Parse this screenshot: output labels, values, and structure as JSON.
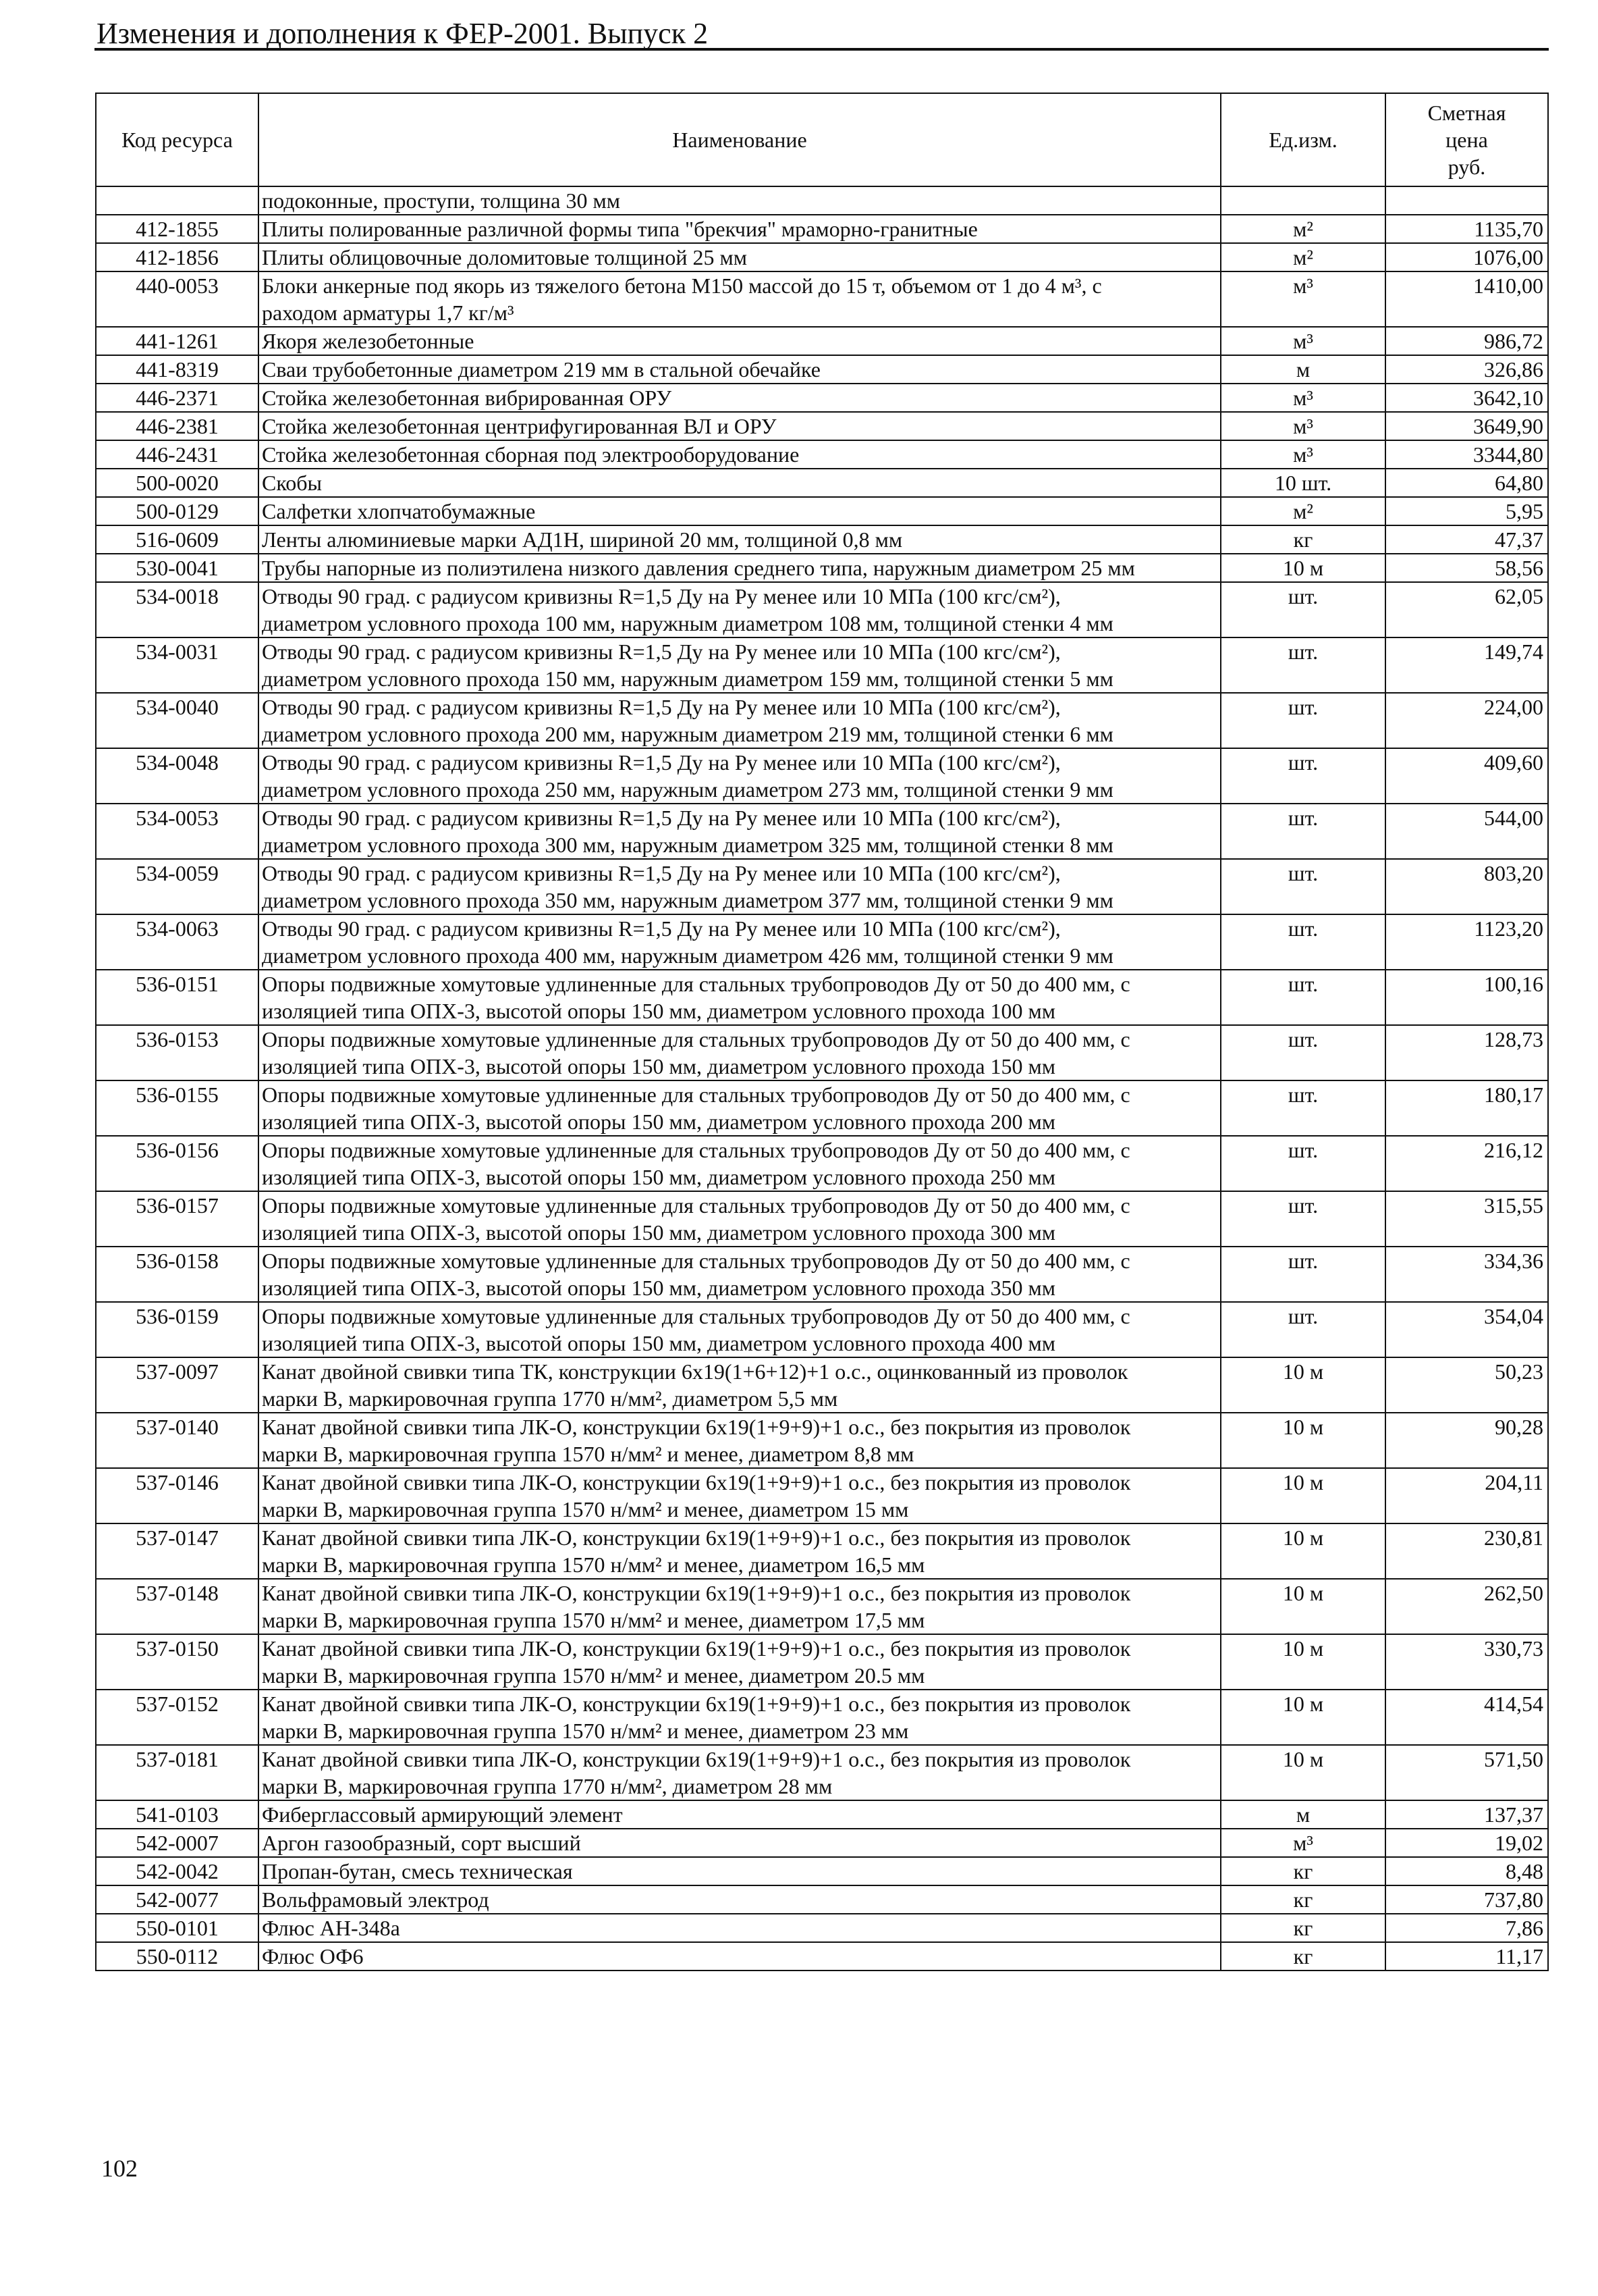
{
  "header": {
    "title": "Изменения и дополнения к ФЕР-2001. Выпуск 2"
  },
  "table": {
    "columns": [
      "Код ресурса",
      "Наименование",
      "Ед.изм.",
      "Сметная\nцена\nруб."
    ],
    "rows": [
      {
        "code": "",
        "name": "подоконные, проступи, толщина 30 мм",
        "unit": "",
        "price": ""
      },
      {
        "code": "412-1855",
        "name": "Плиты полированные различной формы типа \"брекчия\" мраморно-гранитные",
        "unit": "м²",
        "price": "1135,70"
      },
      {
        "code": "412-1856",
        "name": "Плиты облицовочные доломитовые толщиной 25 мм",
        "unit": "м²",
        "price": "1076,00"
      },
      {
        "code": "440-0053",
        "name": "Блоки анкерные под якорь из тяжелого бетона М150 массой до 15 т, объемом от 1 до 4 м³, с\nраходом арматуры 1,7 кг/м³",
        "unit": "м³",
        "price": "1410,00"
      },
      {
        "code": "441-1261",
        "name": "Якоря железобетонные",
        "unit": "м³",
        "price": "986,72"
      },
      {
        "code": "441-8319",
        "name": "Сваи трубобетонные диаметром 219 мм в стальной обечайке",
        "unit": "м",
        "price": "326,86"
      },
      {
        "code": "446-2371",
        "name": "Стойка железобетонная вибрированная ОРУ",
        "unit": "м³",
        "price": "3642,10"
      },
      {
        "code": "446-2381",
        "name": "Стойка железобетонная центрифугированная ВЛ и ОРУ",
        "unit": "м³",
        "price": "3649,90"
      },
      {
        "code": "446-2431",
        "name": "Стойка железобетонная сборная под электрооборудование",
        "unit": "м³",
        "price": "3344,80"
      },
      {
        "code": "500-0020",
        "name": "Скобы",
        "unit": "10 шт.",
        "price": "64,80"
      },
      {
        "code": "500-0129",
        "name": "Салфетки хлопчатобумажные",
        "unit": "м²",
        "price": "5,95"
      },
      {
        "code": "516-0609",
        "name": "Ленты алюминиевые марки АД1Н, шириной 20 мм, толщиной 0,8 мм",
        "unit": "кг",
        "price": "47,37"
      },
      {
        "code": "530-0041",
        "name": "Трубы напорные из полиэтилена низкого давления среднего типа, наружным диаметром 25 мм",
        "unit": "10 м",
        "price": "58,56"
      },
      {
        "code": "534-0018",
        "name": "Отводы 90 град. с радиусом кривизны R=1,5 Ду на Ру менее или 10 МПа (100 кгс/см²),\nдиаметром условного прохода 100 мм, наружным диаметром 108 мм, толщиной стенки 4 мм",
        "unit": "шт.",
        "price": "62,05"
      },
      {
        "code": "534-0031",
        "name": "Отводы 90 град. с радиусом кривизны R=1,5 Ду на Ру менее или 10 МПа (100 кгс/см²),\nдиаметром условного прохода 150 мм, наружным диаметром 159 мм, толщиной стенки 5 мм",
        "unit": "шт.",
        "price": "149,74"
      },
      {
        "code": "534-0040",
        "name": "Отводы 90 град. с радиусом кривизны R=1,5 Ду на Ру менее или 10 МПа (100 кгс/см²),\nдиаметром условного прохода 200 мм, наружным диаметром 219 мм, толщиной стенки 6 мм",
        "unit": "шт.",
        "price": "224,00"
      },
      {
        "code": "534-0048",
        "name": "Отводы 90 град. с радиусом кривизны R=1,5 Ду на Ру менее или 10 МПа (100 кгс/см²),\nдиаметром условного прохода 250 мм, наружным диаметром 273 мм, толщиной стенки 9 мм",
        "unit": "шт.",
        "price": "409,60"
      },
      {
        "code": "534-0053",
        "name": "Отводы 90 град. с радиусом кривизны R=1,5 Ду на Ру менее или 10 МПа (100 кгс/см²),\nдиаметром условного прохода 300 мм, наружным диаметром 325 мм, толщиной стенки 8 мм",
        "unit": "шт.",
        "price": "544,00"
      },
      {
        "code": "534-0059",
        "name": "Отводы 90 град. с радиусом кривизны R=1,5 Ду на Ру менее или 10 МПа (100 кгс/см²),\nдиаметром условного прохода 350 мм, наружным диаметром 377 мм, толщиной стенки 9 мм",
        "unit": "шт.",
        "price": "803,20"
      },
      {
        "code": "534-0063",
        "name": "Отводы 90 град. с радиусом кривизны R=1,5 Ду на Ру менее или 10 МПа (100 кгс/см²),\nдиаметром условного прохода 400 мм, наружным диаметром 426 мм, толщиной стенки 9 мм",
        "unit": "шт.",
        "price": "1123,20"
      },
      {
        "code": "536-0151",
        "name": "Опоры подвижные хомутовые удлиненные для стальных трубопроводов Ду от 50 до 400 мм, с\nизоляцией типа ОПХ-3, высотой опоры 150 мм, диаметром условного прохода 100 мм",
        "unit": "шт.",
        "price": "100,16"
      },
      {
        "code": "536-0153",
        "name": "Опоры подвижные хомутовые удлиненные для стальных трубопроводов Ду от 50 до 400 мм, с\nизоляцией типа ОПХ-3, высотой опоры 150 мм, диаметром условного прохода 150 мм",
        "unit": "шт.",
        "price": "128,73"
      },
      {
        "code": "536-0155",
        "name": "Опоры подвижные хомутовые удлиненные для стальных трубопроводов Ду от 50 до 400 мм, с\nизоляцией типа ОПХ-3, высотой опоры 150 мм, диаметром условного прохода 200 мм",
        "unit": "шт.",
        "price": "180,17"
      },
      {
        "code": "536-0156",
        "name": "Опоры подвижные хомутовые удлиненные для стальных трубопроводов Ду от 50 до 400 мм, с\nизоляцией типа ОПХ-3, высотой опоры 150 мм, диаметром условного прохода 250 мм",
        "unit": "шт.",
        "price": "216,12"
      },
      {
        "code": "536-0157",
        "name": "Опоры подвижные хомутовые удлиненные для стальных трубопроводов Ду от 50 до 400 мм, с\nизоляцией типа ОПХ-3, высотой опоры 150 мм, диаметром условного прохода 300 мм",
        "unit": "шт.",
        "price": "315,55"
      },
      {
        "code": "536-0158",
        "name": "Опоры подвижные хомутовые удлиненные для стальных трубопроводов Ду от 50 до 400 мм, с\nизоляцией типа ОПХ-3, высотой опоры 150 мм, диаметром условного прохода 350 мм",
        "unit": "шт.",
        "price": "334,36"
      },
      {
        "code": "536-0159",
        "name": "Опоры подвижные хомутовые удлиненные для стальных трубопроводов Ду от 50 до 400 мм, с\nизоляцией типа ОПХ-3, высотой опоры 150 мм, диаметром условного прохода 400 мм",
        "unit": "шт.",
        "price": "354,04"
      },
      {
        "code": "537-0097",
        "name": "Канат двойной свивки типа ТК, конструкции 6х19(1+6+12)+1 о.с., оцинкованный из проволок\nмарки В, маркировочная группа 1770 н/мм², диаметром 5,5 мм",
        "unit": "10 м",
        "price": "50,23"
      },
      {
        "code": "537-0140",
        "name": "Канат двойной свивки типа ЛК-О, конструкции 6х19(1+9+9)+1 о.с., без покрытия из проволок\nмарки В, маркировочная группа 1570 н/мм² и менее, диаметром 8,8 мм",
        "unit": "10 м",
        "price": "90,28"
      },
      {
        "code": "537-0146",
        "name": "Канат двойной свивки типа ЛК-О, конструкции 6х19(1+9+9)+1 о.с., без покрытия из проволок\nмарки В, маркировочная группа 1570 н/мм² и менее, диаметром 15 мм",
        "unit": "10 м",
        "price": "204,11"
      },
      {
        "code": "537-0147",
        "name": "Канат двойной свивки типа ЛК-О, конструкции 6х19(1+9+9)+1 о.с., без покрытия из проволок\nмарки В, маркировочная группа 1570 н/мм² и менее, диаметром 16,5 мм",
        "unit": "10 м",
        "price": "230,81"
      },
      {
        "code": "537-0148",
        "name": "Канат двойной свивки типа ЛК-О, конструкции 6х19(1+9+9)+1 о.с., без покрытия из проволок\nмарки В, маркировочная группа 1570 н/мм² и менее, диаметром 17,5 мм",
        "unit": "10 м",
        "price": "262,50"
      },
      {
        "code": "537-0150",
        "name": "Канат двойной свивки типа ЛК-О, конструкции 6х19(1+9+9)+1 о.с., без покрытия из проволок\nмарки В, маркировочная группа 1570 н/мм² и менее, диаметром 20.5 мм",
        "unit": "10 м",
        "price": "330,73"
      },
      {
        "code": "537-0152",
        "name": "Канат двойной свивки типа ЛК-О, конструкции 6х19(1+9+9)+1 о.с., без покрытия из проволок\nмарки В, маркировочная группа 1570 н/мм² и менее, диаметром 23 мм",
        "unit": "10 м",
        "price": "414,54"
      },
      {
        "code": "537-0181",
        "name": "Канат двойной свивки типа ЛК-О, конструкции 6х19(1+9+9)+1 о.с., без покрытия из проволок\nмарки В, маркировочная группа 1770 н/мм², диаметром 28 мм",
        "unit": "10 м",
        "price": "571,50"
      },
      {
        "code": "541-0103",
        "name": "Фиберглассовый армирующий элемент",
        "unit": "м",
        "price": "137,37"
      },
      {
        "code": "542-0007",
        "name": "Аргон газообразный, сорт высший",
        "unit": "м³",
        "price": "19,02"
      },
      {
        "code": "542-0042",
        "name": "Пропан-бутан, смесь техническая",
        "unit": "кг",
        "price": "8,48"
      },
      {
        "code": "542-0077",
        "name": "Вольфрамовый электрод",
        "unit": "кг",
        "price": "737,80"
      },
      {
        "code": "550-0101",
        "name": "Флюс АН-348а",
        "unit": "кг",
        "price": "7,86"
      },
      {
        "code": "550-0112",
        "name": "Флюс ОФ6",
        "unit": "кг",
        "price": "11,17"
      }
    ]
  },
  "footer": {
    "page_number": "102"
  }
}
